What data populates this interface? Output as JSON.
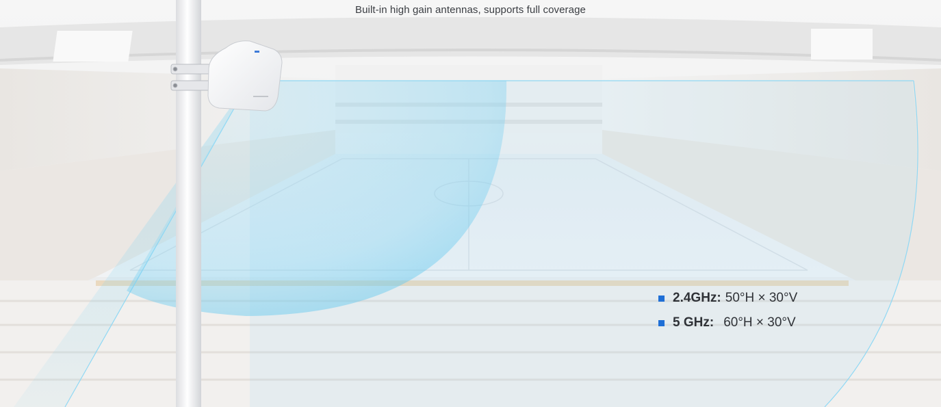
{
  "subtitle": "Built-in high gain antennas, supports full coverage",
  "specs": [
    {
      "band": "2.4GHz:",
      "value": "50°H × 30°V"
    },
    {
      "band": "5 GHz:",
      "value": "60°H × 30°V"
    }
  ],
  "colors": {
    "bullet": "#1f6fd6",
    "coverage": "#7fd3f2",
    "background": "#eef0f3"
  },
  "icons": {
    "access_point": "outdoor-access-point",
    "pole": "mounting-pole"
  }
}
